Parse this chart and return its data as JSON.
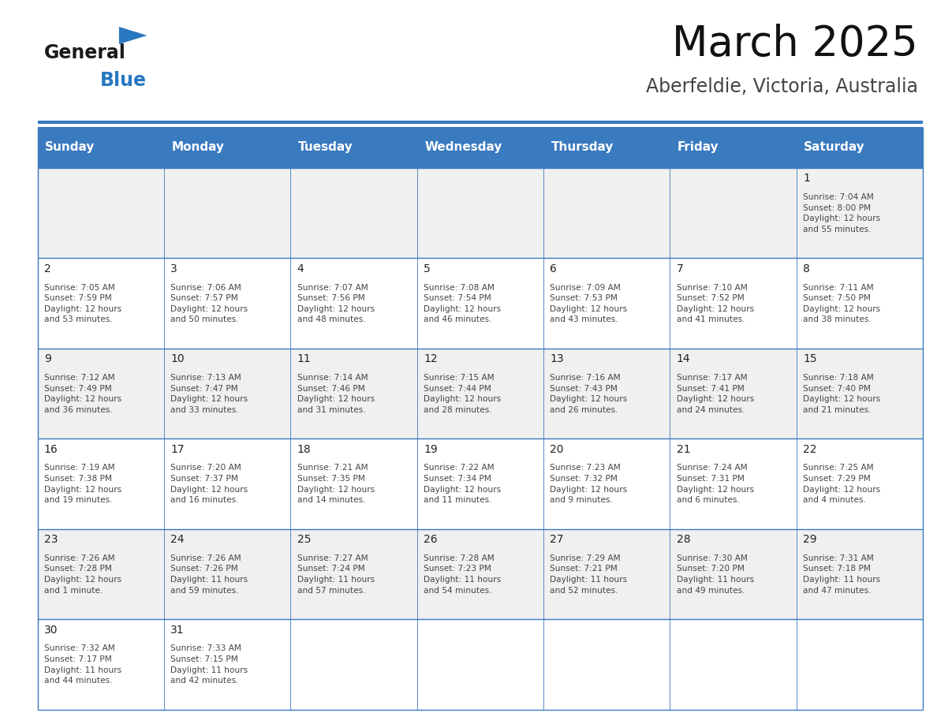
{
  "title": "March 2025",
  "subtitle": "Aberfeldie, Victoria, Australia",
  "header_bg": "#3a7abf",
  "header_text_color": "#ffffff",
  "day_names": [
    "Sunday",
    "Monday",
    "Tuesday",
    "Wednesday",
    "Thursday",
    "Friday",
    "Saturday"
  ],
  "cell_bg_odd": "#f0f0f0",
  "cell_bg_even": "#ffffff",
  "cell_border_color": "#3a7abf",
  "text_color": "#444444",
  "day_num_color": "#222222",
  "logo_general_color": "#1a1a1a",
  "logo_blue_color": "#2878c0",
  "logo_triangle_color": "#2878c0",
  "calendar": [
    [
      null,
      null,
      null,
      null,
      null,
      null,
      {
        "day": 1,
        "sunrise": "7:04 AM",
        "sunset": "8:00 PM",
        "daylight": "12 hours\nand 55 minutes."
      }
    ],
    [
      {
        "day": 2,
        "sunrise": "7:05 AM",
        "sunset": "7:59 PM",
        "daylight": "12 hours\nand 53 minutes."
      },
      {
        "day": 3,
        "sunrise": "7:06 AM",
        "sunset": "7:57 PM",
        "daylight": "12 hours\nand 50 minutes."
      },
      {
        "day": 4,
        "sunrise": "7:07 AM",
        "sunset": "7:56 PM",
        "daylight": "12 hours\nand 48 minutes."
      },
      {
        "day": 5,
        "sunrise": "7:08 AM",
        "sunset": "7:54 PM",
        "daylight": "12 hours\nand 46 minutes."
      },
      {
        "day": 6,
        "sunrise": "7:09 AM",
        "sunset": "7:53 PM",
        "daylight": "12 hours\nand 43 minutes."
      },
      {
        "day": 7,
        "sunrise": "7:10 AM",
        "sunset": "7:52 PM",
        "daylight": "12 hours\nand 41 minutes."
      },
      {
        "day": 8,
        "sunrise": "7:11 AM",
        "sunset": "7:50 PM",
        "daylight": "12 hours\nand 38 minutes."
      }
    ],
    [
      {
        "day": 9,
        "sunrise": "7:12 AM",
        "sunset": "7:49 PM",
        "daylight": "12 hours\nand 36 minutes."
      },
      {
        "day": 10,
        "sunrise": "7:13 AM",
        "sunset": "7:47 PM",
        "daylight": "12 hours\nand 33 minutes."
      },
      {
        "day": 11,
        "sunrise": "7:14 AM",
        "sunset": "7:46 PM",
        "daylight": "12 hours\nand 31 minutes."
      },
      {
        "day": 12,
        "sunrise": "7:15 AM",
        "sunset": "7:44 PM",
        "daylight": "12 hours\nand 28 minutes."
      },
      {
        "day": 13,
        "sunrise": "7:16 AM",
        "sunset": "7:43 PM",
        "daylight": "12 hours\nand 26 minutes."
      },
      {
        "day": 14,
        "sunrise": "7:17 AM",
        "sunset": "7:41 PM",
        "daylight": "12 hours\nand 24 minutes."
      },
      {
        "day": 15,
        "sunrise": "7:18 AM",
        "sunset": "7:40 PM",
        "daylight": "12 hours\nand 21 minutes."
      }
    ],
    [
      {
        "day": 16,
        "sunrise": "7:19 AM",
        "sunset": "7:38 PM",
        "daylight": "12 hours\nand 19 minutes."
      },
      {
        "day": 17,
        "sunrise": "7:20 AM",
        "sunset": "7:37 PM",
        "daylight": "12 hours\nand 16 minutes."
      },
      {
        "day": 18,
        "sunrise": "7:21 AM",
        "sunset": "7:35 PM",
        "daylight": "12 hours\nand 14 minutes."
      },
      {
        "day": 19,
        "sunrise": "7:22 AM",
        "sunset": "7:34 PM",
        "daylight": "12 hours\nand 11 minutes."
      },
      {
        "day": 20,
        "sunrise": "7:23 AM",
        "sunset": "7:32 PM",
        "daylight": "12 hours\nand 9 minutes."
      },
      {
        "day": 21,
        "sunrise": "7:24 AM",
        "sunset": "7:31 PM",
        "daylight": "12 hours\nand 6 minutes."
      },
      {
        "day": 22,
        "sunrise": "7:25 AM",
        "sunset": "7:29 PM",
        "daylight": "12 hours\nand 4 minutes."
      }
    ],
    [
      {
        "day": 23,
        "sunrise": "7:26 AM",
        "sunset": "7:28 PM",
        "daylight": "12 hours\nand 1 minute."
      },
      {
        "day": 24,
        "sunrise": "7:26 AM",
        "sunset": "7:26 PM",
        "daylight": "11 hours\nand 59 minutes."
      },
      {
        "day": 25,
        "sunrise": "7:27 AM",
        "sunset": "7:24 PM",
        "daylight": "11 hours\nand 57 minutes."
      },
      {
        "day": 26,
        "sunrise": "7:28 AM",
        "sunset": "7:23 PM",
        "daylight": "11 hours\nand 54 minutes."
      },
      {
        "day": 27,
        "sunrise": "7:29 AM",
        "sunset": "7:21 PM",
        "daylight": "11 hours\nand 52 minutes."
      },
      {
        "day": 28,
        "sunrise": "7:30 AM",
        "sunset": "7:20 PM",
        "daylight": "11 hours\nand 49 minutes."
      },
      {
        "day": 29,
        "sunrise": "7:31 AM",
        "sunset": "7:18 PM",
        "daylight": "11 hours\nand 47 minutes."
      }
    ],
    [
      {
        "day": 30,
        "sunrise": "7:32 AM",
        "sunset": "7:17 PM",
        "daylight": "11 hours\nand 44 minutes."
      },
      {
        "day": 31,
        "sunrise": "7:33 AM",
        "sunset": "7:15 PM",
        "daylight": "11 hours\nand 42 minutes."
      },
      null,
      null,
      null,
      null,
      null
    ]
  ]
}
